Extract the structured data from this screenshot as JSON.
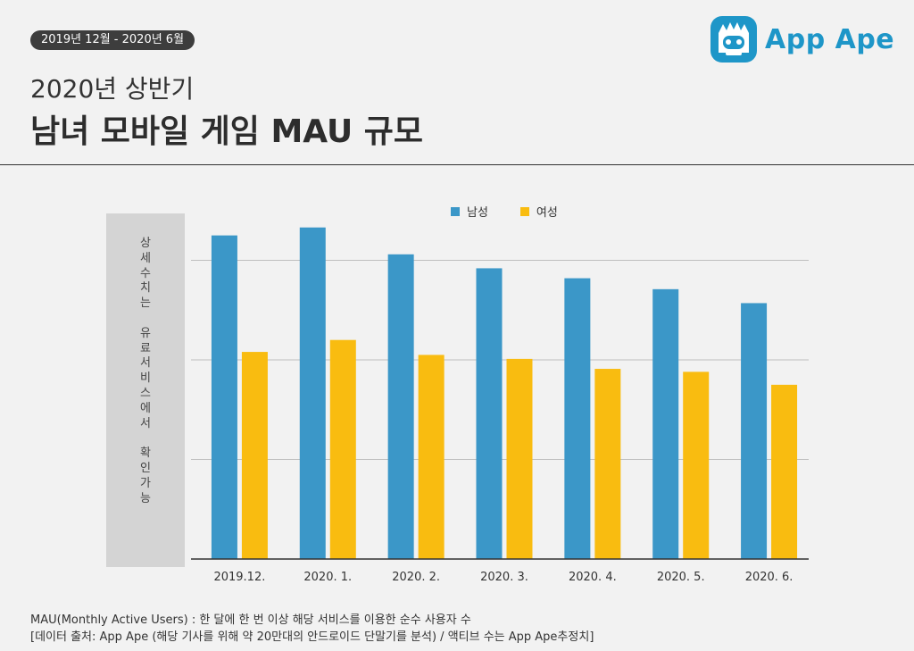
{
  "header": {
    "period": "2019년 12월 - 2020년 6월",
    "title_line1": "2020년 상반기",
    "title_line2": "남녀 모바일 게임 MAU 규모",
    "logo_text": "App Ape"
  },
  "sidebar": {
    "note": "상\n세\n수\n치\n는\n\n유\n료\n서\n비\n스\n에\n서\n\n확\n인\n가\n능"
  },
  "colors": {
    "male": "#3b97c8",
    "female": "#f9bc10",
    "grid": "#bfbfbf",
    "axis": "#333333"
  },
  "chart_data": {
    "type": "bar",
    "title": "",
    "xlabel": "",
    "ylabel": "",
    "categories": [
      "2019.12.",
      "2020. 1.",
      "2020. 2.",
      "2020. 3.",
      "2020. 4.",
      "2020. 5.",
      "2020. 6."
    ],
    "series": [
      {
        "name": "남성",
        "values": [
          3.25,
          3.33,
          3.06,
          2.92,
          2.82,
          2.71,
          2.57
        ]
      },
      {
        "name": "여성",
        "values": [
          2.08,
          2.2,
          2.05,
          2.01,
          1.91,
          1.88,
          1.75
        ]
      }
    ],
    "ylim": [
      0,
      4
    ],
    "gridlines": [
      1,
      2,
      3
    ],
    "y_tick_labels_shown": false,
    "legend_position": "top-center"
  },
  "footer": {
    "line1": "MAU(Monthly Active Users) : 한 달에 한 번 이상 해당 서비스를 이용한 순수 사용자 수",
    "line2": "[데이터 출처: App Ape (해당 기사를 위해 약 20만대의 안드로이드 단말기를 분석) / 액티브 수는 App Ape추정치]"
  }
}
